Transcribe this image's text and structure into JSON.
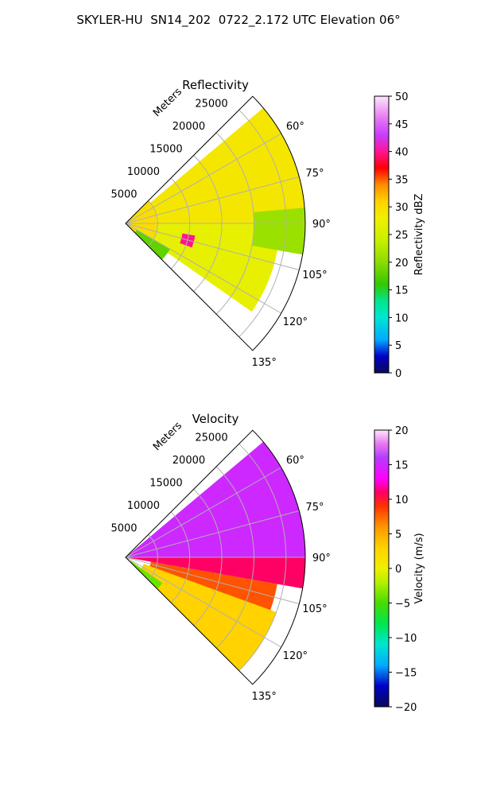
{
  "page": {
    "title": "SKYLER-HU  SN14_202  0722_2.172 UTC Elevation 06°"
  },
  "chart_data": [
    {
      "type": "heatmap",
      "subtype": "polar-sector (PPI radar scan)",
      "title": "Reflectivity",
      "range_axis_label": "Meters",
      "range_ticks": [
        5000,
        10000,
        15000,
        20000,
        25000
      ],
      "range_tick_labels": [
        "5000",
        "10000",
        "15000",
        "20000",
        "25000"
      ],
      "range_limit": [
        0,
        28000
      ],
      "azimuth_ticks_deg": [
        60,
        75,
        90,
        105,
        120,
        135
      ],
      "azimuth_tick_labels": [
        "60°",
        "75°",
        "90°",
        "105°",
        "120°",
        "135°"
      ],
      "azimuth_limit_deg": [
        45,
        135
      ],
      "grid": true,
      "colorbar": {
        "label": "Reflectivity dBZ",
        "range": [
          0,
          50
        ],
        "ticks": [
          0,
          5,
          10,
          15,
          20,
          25,
          30,
          35,
          40,
          45,
          50
        ],
        "tick_labels": [
          "0",
          "5",
          "10",
          "15",
          "20",
          "25",
          "30",
          "35",
          "40",
          "45",
          "50"
        ]
      },
      "regions": [
        {
          "azimuth_deg": [
            45,
            135
          ],
          "range_m": [
            0,
            5000
          ],
          "value": 30
        },
        {
          "azimuth_deg": [
            50,
            90
          ],
          "range_m": [
            5000,
            28000
          ],
          "value": 29
        },
        {
          "azimuth_deg": [
            90,
            125
          ],
          "range_m": [
            5000,
            24000
          ],
          "value": 27
        },
        {
          "azimuth_deg": [
            85,
            100
          ],
          "range_m": [
            20000,
            28000
          ],
          "value": 21
        },
        {
          "azimuth_deg": [
            120,
            135
          ],
          "range_m": [
            2000,
            8000
          ],
          "value": 18
        },
        {
          "azimuth_deg": [
            100,
            110
          ],
          "range_m": [
            9000,
            11000
          ],
          "value": 40
        }
      ]
    },
    {
      "type": "heatmap",
      "subtype": "polar-sector (PPI radar scan)",
      "title": "Velocity",
      "range_axis_label": "Meters",
      "range_ticks": [
        5000,
        10000,
        15000,
        20000,
        25000
      ],
      "range_tick_labels": [
        "5000",
        "10000",
        "15000",
        "20000",
        "25000"
      ],
      "range_limit": [
        0,
        28000
      ],
      "azimuth_ticks_deg": [
        60,
        75,
        90,
        105,
        120,
        135
      ],
      "azimuth_tick_labels": [
        "60°",
        "75°",
        "90°",
        "105°",
        "120°",
        "135°"
      ],
      "azimuth_limit_deg": [
        45,
        135
      ],
      "grid": true,
      "colorbar": {
        "label": "Velocity (m/s)",
        "range": [
          -20,
          20
        ],
        "ticks": [
          -20,
          -15,
          -10,
          -5,
          0,
          5,
          10,
          15,
          20
        ],
        "tick_labels": [
          "−20",
          "−15",
          "−10",
          "−5",
          "0",
          "5",
          "10",
          "15",
          "20"
        ]
      },
      "regions": [
        {
          "azimuth_deg": [
            50,
            90
          ],
          "range_m": [
            0,
            28000
          ],
          "value": 15
        },
        {
          "azimuth_deg": [
            90,
            100
          ],
          "range_m": [
            0,
            28000
          ],
          "value": 11
        },
        {
          "azimuth_deg": [
            100,
            125
          ],
          "range_m": [
            4000,
            24000
          ],
          "value": 8
        },
        {
          "azimuth_deg": [
            110,
            135
          ],
          "range_m": [
            3000,
            25000
          ],
          "value": 3
        },
        {
          "azimuth_deg": [
            125,
            135
          ],
          "range_m": [
            1000,
            7000
          ],
          "value": -4
        }
      ]
    }
  ]
}
